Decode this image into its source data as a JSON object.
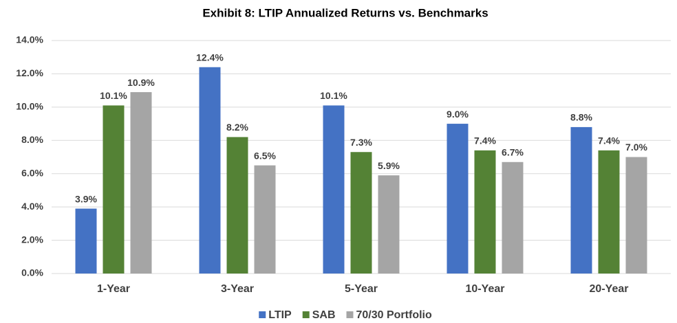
{
  "chart_data": {
    "type": "bar",
    "title": "Exhibit 8: LTIP Annualized Returns vs. Benchmarks",
    "categories": [
      "1-Year",
      "3-Year",
      "5-Year",
      "10-Year",
      "20-Year"
    ],
    "series": [
      {
        "name": "LTIP",
        "color": "#4472c4",
        "values": [
          3.9,
          12.4,
          10.1,
          9.0,
          8.8
        ],
        "value_labels": [
          "3.9%",
          "12.4%",
          "10.1%",
          "9.0%",
          "8.8%"
        ]
      },
      {
        "name": "SAB",
        "color": "#548235",
        "values": [
          10.1,
          8.2,
          7.3,
          7.4,
          7.4
        ],
        "value_labels": [
          "10.1%",
          "8.2%",
          "7.3%",
          "7.4%",
          "7.4%"
        ]
      },
      {
        "name": "70/30 Portfolio",
        "color": "#a5a5a5",
        "values": [
          10.9,
          6.5,
          5.9,
          6.7,
          7.0
        ],
        "value_labels": [
          "10.9%",
          "6.5%",
          "5.9%",
          "6.7%",
          "7.0%"
        ]
      }
    ],
    "ylim": [
      0,
      14
    ],
    "yticks": [
      {
        "value": 0,
        "label": "0.0%"
      },
      {
        "value": 2,
        "label": "2.0%"
      },
      {
        "value": 4,
        "label": "4.0%"
      },
      {
        "value": 6,
        "label": "6.0%"
      },
      {
        "value": 8,
        "label": "8.0%"
      },
      {
        "value": 10,
        "label": "10.0%"
      },
      {
        "value": 12,
        "label": "12.0%"
      },
      {
        "value": 14,
        "label": "14.0%"
      }
    ],
    "grid": true,
    "legend": "bottom"
  }
}
